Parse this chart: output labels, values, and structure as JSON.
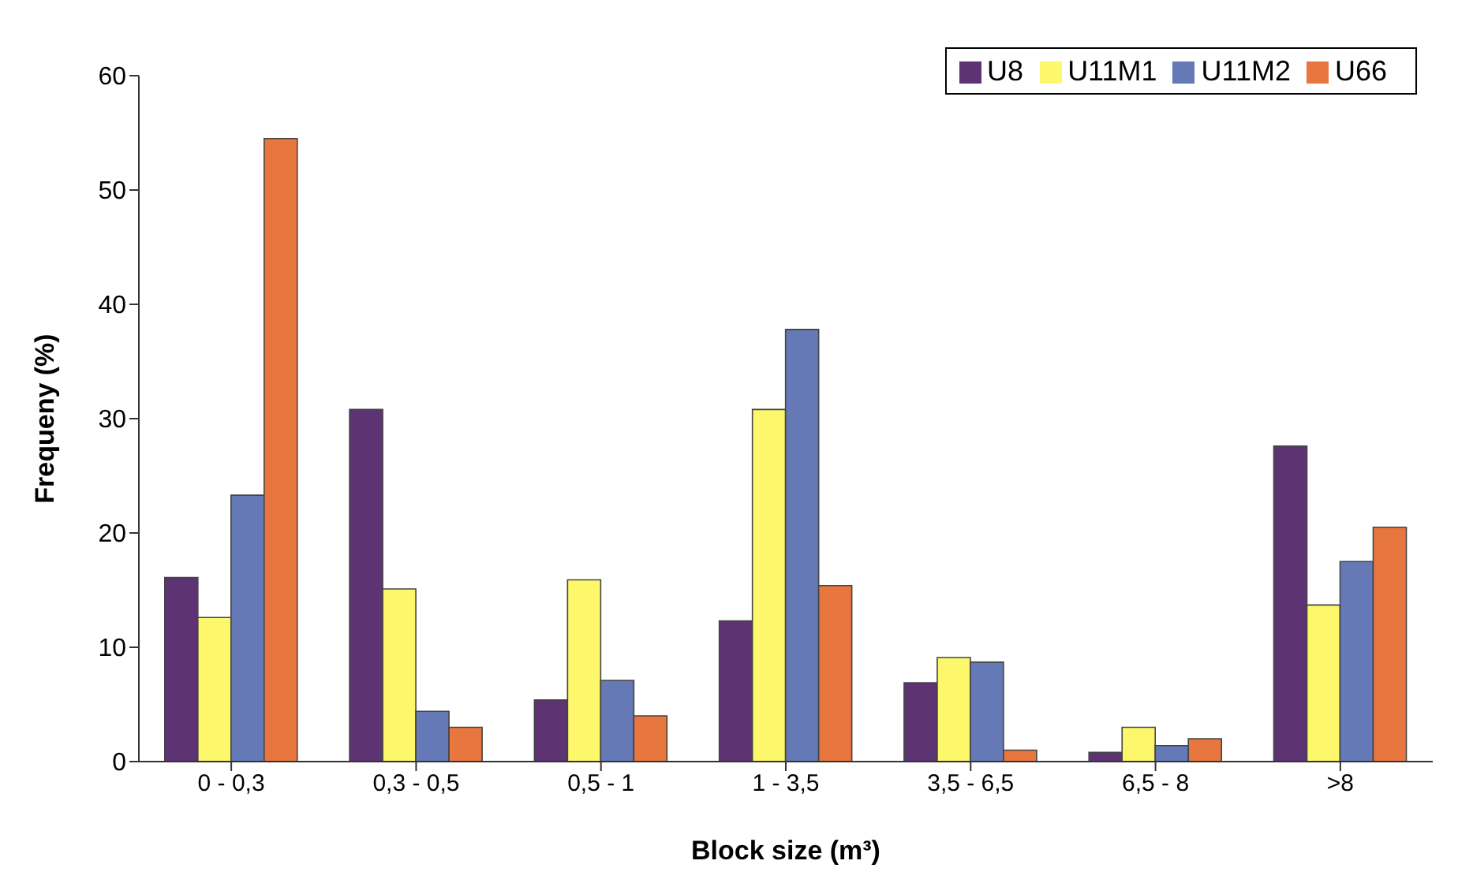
{
  "chart_data": {
    "type": "bar",
    "xlabel": "Block size (m³)",
    "ylabel": "Frequeny (%)",
    "categories": [
      "0 - 0,3",
      "0,3 - 0,5",
      "0,5 - 1",
      "1 - 3,5",
      "3,5 - 6,5",
      "6,5 - 8",
      ">8"
    ],
    "series": [
      {
        "name": "U8",
        "color": "#5e3373",
        "values": [
          16.1,
          30.8,
          5.4,
          12.3,
          6.9,
          0.8,
          27.6
        ]
      },
      {
        "name": "U11M1",
        "color": "#fdf76c",
        "values": [
          12.6,
          15.1,
          15.9,
          30.8,
          9.1,
          3.0,
          13.7
        ]
      },
      {
        "name": "U11M2",
        "color": "#6479b5",
        "values": [
          23.3,
          4.4,
          7.1,
          37.8,
          8.7,
          1.4,
          17.5
        ]
      },
      {
        "name": "U66",
        "color": "#e8773f",
        "values": [
          54.5,
          3.0,
          4.0,
          15.4,
          1.0,
          2.0,
          20.5
        ]
      }
    ],
    "ylim": [
      0,
      60
    ],
    "yticks": [
      0,
      10,
      20,
      30,
      40,
      50,
      60
    ],
    "grid": false,
    "legend": "top right"
  }
}
